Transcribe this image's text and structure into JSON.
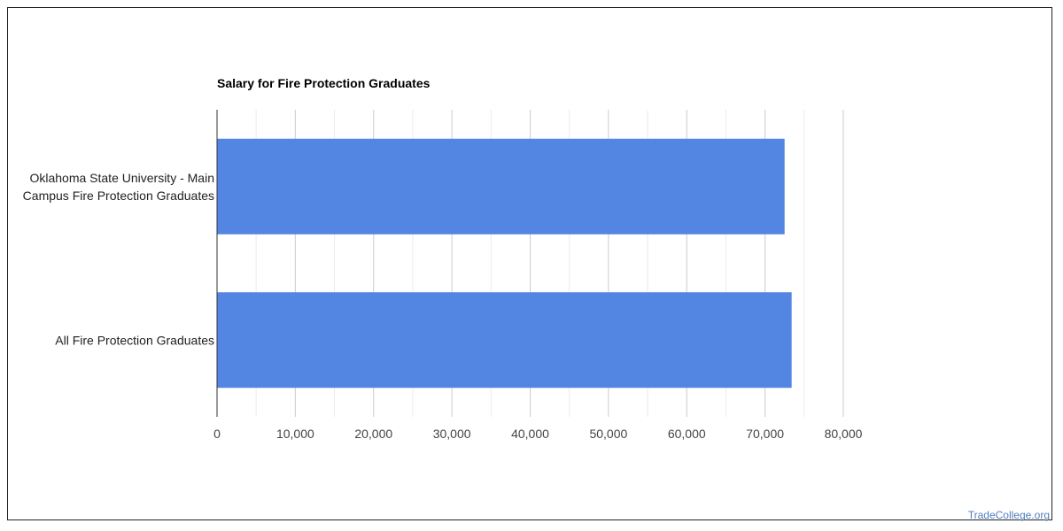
{
  "chart_data": {
    "type": "bar",
    "orientation": "horizontal",
    "title": "Salary for Fire Protection Graduates",
    "xlabel": "",
    "ylabel": "",
    "categories": [
      "Oklahoma State University - Main Campus Fire Protection Graduates",
      "All Fire Protection Graduates"
    ],
    "values": [
      72500,
      73400
    ],
    "xlim": [
      0,
      80000
    ],
    "ticks": [
      0,
      10000,
      20000,
      30000,
      40000,
      50000,
      60000,
      70000,
      80000
    ],
    "tick_labels": [
      "0",
      "10,000",
      "20,000",
      "30,000",
      "40,000",
      "50,000",
      "60,000",
      "70,000",
      "80,000"
    ],
    "grid": true,
    "legend": "none",
    "bar_color": "#5286e2"
  },
  "watermark": "TradeCollege.org"
}
